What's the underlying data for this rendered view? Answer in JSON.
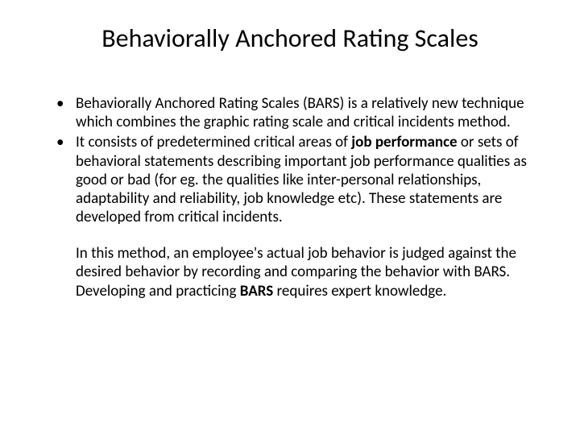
{
  "title": "Behaviorally Anchored Rating Scales",
  "bullets": [
    {
      "pre": "Behaviorally Anchored Rating Scales (BARS) is a relatively new technique which combines the graphic rating scale and critical incidents method."
    },
    {
      "pre": " It consists of predetermined critical areas of ",
      "bold1": "job performance",
      "mid": " or sets of behavioral statements describing important job performance qualities as good or bad (for eg. the qualities like inter-personal relationships, adaptability and reliability, job knowledge etc). These statements are developed from critical incidents."
    }
  ],
  "paragraph": {
    "pre": "In this method, an employee's actual job behavior is judged against the desired behavior by recording and comparing the behavior with BARS. Developing and practicing ",
    "bold1": "BARS",
    "post": " requires expert knowledge."
  },
  "colors": {
    "background": "#ffffff",
    "text": "#000000"
  },
  "typography": {
    "title_fontsize": 32,
    "body_fontsize": 19,
    "font_family": "Calibri"
  }
}
